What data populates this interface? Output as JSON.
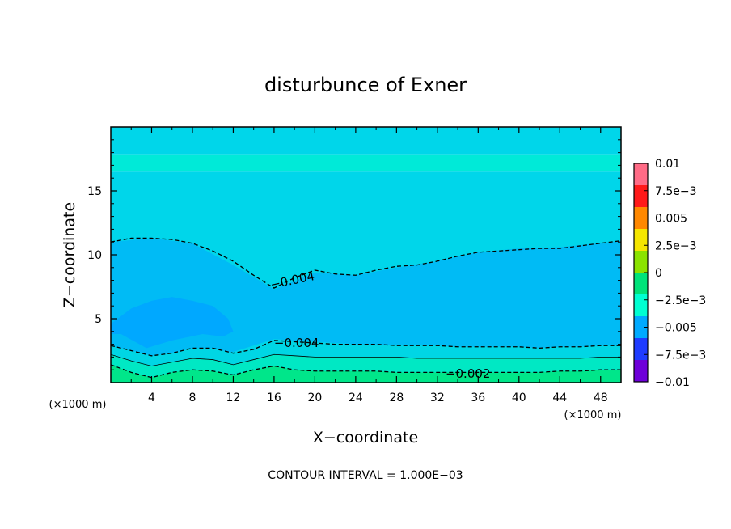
{
  "chart_data": {
    "type": "contour",
    "title": "disturbunce of Exner",
    "xlabel": "X−coordinate",
    "ylabel": "Z−coordinate",
    "x_unit_label": "(×1000 m)",
    "y_unit_label": "(×1000 m)",
    "xlim": [
      0,
      50
    ],
    "ylim": [
      0,
      20
    ],
    "x_ticks": [
      "4",
      "8",
      "12",
      "16",
      "20",
      "24",
      "28",
      "32",
      "36",
      "40",
      "44",
      "48"
    ],
    "y_ticks": [
      "5",
      "10",
      "15"
    ],
    "contour_interval_text": "CONTOUR INTERVAL = 1.000E−03",
    "colorbar": {
      "labels": [
        "0.01",
        "7.5e−3",
        "0.005",
        "2.5e−3",
        "0",
        "−2.5e−3",
        "−0.005",
        "−7.5e−3",
        "−0.01"
      ],
      "colors": [
        "#ff6b86",
        "#ff1a1a",
        "#ff8800",
        "#f5e600",
        "#8be300",
        "#00e37a",
        "#00ffd2",
        "#00aaff",
        "#1f3cff",
        "#6e00d9"
      ]
    },
    "filled_regions": [
      {
        "level": "-0.005 to -0.004",
        "color": "#00a8ff",
        "x": [
          0.0,
          2.0,
          4.0,
          6.0,
          8.0,
          10.0,
          11.5,
          12.0,
          11.0,
          9.0,
          6.0,
          3.5,
          1.0,
          0.0,
          0.0
        ],
        "z": [
          4.6,
          5.8,
          6.4,
          6.7,
          6.4,
          6.0,
          5.0,
          4.0,
          3.6,
          3.8,
          3.3,
          2.7,
          3.8,
          3.8,
          4.6
        ]
      },
      {
        "level": "-0.004 to -0.003",
        "color": "#00bbf5",
        "x": [
          0,
          4,
          8,
          12,
          16,
          20,
          24,
          28,
          32,
          36,
          40,
          44,
          48,
          50
        ],
        "z_top": [
          11.0,
          11.3,
          10.9,
          9.2,
          7.3,
          8.6,
          8.4,
          9.0,
          9.5,
          10.2,
          10.5,
          10.6,
          10.9,
          11.1
        ],
        "z_bottom": [
          2.9,
          2.1,
          2.5,
          2.4,
          3.4,
          3.2,
          3.0,
          2.9,
          2.8,
          2.7,
          2.6,
          2.6,
          2.7,
          2.8
        ]
      },
      {
        "level": "-0.003 to -0.002 (upper)",
        "color": "#00d6ea",
        "z_range": [
          11.0,
          16.5
        ]
      },
      {
        "level": "-0.002 to -0.001 (upper)",
        "color": "#00ead8",
        "z_range": [
          16.5,
          17.8
        ]
      },
      {
        "level": "-0.003 to -0.002 (lower)",
        "color": "#00d6e4"
      },
      {
        "level": "-0.002 to -0.001 (lower)",
        "color": "#00e8c4"
      },
      {
        "level": "-0.001 to 0 (lower)",
        "color": "#00e68a"
      }
    ],
    "contours": [
      {
        "level": "-0.004",
        "label": "−0.004",
        "style": "dashed",
        "x": [
          0,
          2,
          4,
          6,
          8,
          10,
          12,
          14,
          16,
          18,
          20,
          22,
          24,
          26,
          28,
          30,
          32,
          34,
          36,
          38,
          40,
          42,
          44,
          46,
          48,
          50
        ],
        "z": [
          11.0,
          11.3,
          11.3,
          11.2,
          10.9,
          10.3,
          9.5,
          8.4,
          7.4,
          8.2,
          8.8,
          8.5,
          8.4,
          8.8,
          9.1,
          9.2,
          9.5,
          9.9,
          10.2,
          10.3,
          10.4,
          10.5,
          10.5,
          10.7,
          10.9,
          11.1
        ]
      },
      {
        "level": "-0.004",
        "label": "−0.004",
        "style": "dashed",
        "x": [
          0,
          2,
          4,
          6,
          8,
          10,
          12,
          14,
          16,
          18,
          20,
          22,
          24,
          26,
          28,
          30,
          32,
          34,
          36,
          38,
          40,
          42,
          44,
          46,
          48,
          50
        ],
        "z": [
          2.9,
          2.5,
          2.1,
          2.3,
          2.7,
          2.7,
          2.3,
          2.6,
          3.3,
          3.2,
          3.1,
          3.0,
          3.0,
          3.0,
          2.9,
          2.9,
          2.9,
          2.8,
          2.8,
          2.8,
          2.8,
          2.7,
          2.8,
          2.8,
          2.9,
          2.9
        ]
      },
      {
        "level": "-0.003",
        "style": "thin",
        "x": [
          0,
          2,
          4,
          6,
          8,
          10,
          12,
          14,
          16,
          18,
          20,
          22,
          24,
          26,
          28,
          30,
          32,
          34,
          36,
          38,
          40,
          42,
          44,
          46,
          48,
          50
        ],
        "z": [
          2.2,
          1.7,
          1.3,
          1.6,
          1.9,
          1.8,
          1.4,
          1.8,
          2.2,
          2.1,
          2.0,
          2.0,
          2.0,
          2.0,
          2.0,
          1.9,
          1.9,
          1.9,
          1.9,
          1.9,
          1.9,
          1.9,
          1.9,
          1.9,
          2.0,
          2.0
        ]
      },
      {
        "level": "-0.002",
        "label": "−0.002",
        "style": "dashed",
        "x": [
          0,
          2,
          4,
          6,
          8,
          10,
          12,
          14,
          16,
          18,
          20,
          22,
          24,
          26,
          28,
          30,
          32,
          34,
          36,
          38,
          40,
          42,
          44,
          46,
          48,
          50
        ],
        "z": [
          1.4,
          0.8,
          0.4,
          0.8,
          1.0,
          0.9,
          0.6,
          1.0,
          1.3,
          1.0,
          0.9,
          0.9,
          0.9,
          0.9,
          0.8,
          0.8,
          0.8,
          0.8,
          0.8,
          0.8,
          0.8,
          0.8,
          0.9,
          0.9,
          1.0,
          1.0
        ]
      }
    ],
    "contour_labels": [
      {
        "text": "−0.004",
        "x": 17.8,
        "z": 8.0,
        "angle": -12
      },
      {
        "text": "−0.004",
        "x": 18.2,
        "z": 3.1,
        "angle": 0
      },
      {
        "text": "−0.002",
        "x": 35.0,
        "z": 0.7,
        "angle": 0
      }
    ]
  }
}
